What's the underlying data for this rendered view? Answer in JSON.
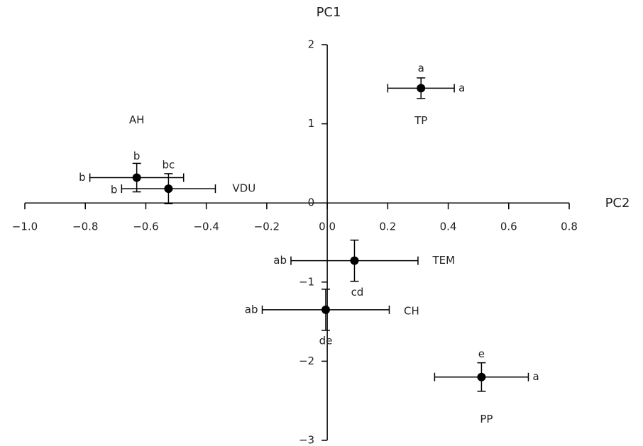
{
  "chart_data": {
    "type": "scatter",
    "ylabel": "PC1",
    "xlabel": "PC2",
    "xlim": [
      -1.0,
      0.8
    ],
    "xticks": [
      {
        "value": -1.0,
        "label": "−1.0"
      },
      {
        "value": -0.8,
        "label": "−0.8"
      },
      {
        "value": -0.6,
        "label": "−0.6"
      },
      {
        "value": -0.4,
        "label": "−0.4"
      },
      {
        "value": -0.2,
        "label": "−0.2"
      },
      {
        "value": 0,
        "label": "0.0"
      },
      {
        "value": 0.2,
        "label": "0.2"
      },
      {
        "value": 0.4,
        "label": "0.4"
      },
      {
        "value": 0.6,
        "label": "0.6"
      },
      {
        "value": 0.8,
        "label": "0.8"
      }
    ],
    "ylim": [
      -3,
      2
    ],
    "yticks": [
      2,
      1,
      0,
      {
        "value": -1,
        "label": "−1"
      },
      {
        "value": -2,
        "label": "−2"
      },
      {
        "value": -3,
        "label": "−3"
      }
    ],
    "color": "#000000",
    "points": [
      {
        "name": "TP",
        "x": 0.31,
        "y": 1.45,
        "xerr": 0.11,
        "yerr": 0.13,
        "y_letter": "a",
        "x_letter": "a"
      },
      {
        "name": "AH",
        "x": -0.63,
        "y": 0.32,
        "xerr": 0.155,
        "yerr": 0.18,
        "y_letter": "b",
        "x_letter": "b"
      },
      {
        "name": "VDU",
        "x": -0.525,
        "y": 0.18,
        "xerr": 0.155,
        "yerr": 0.19,
        "y_letter": "bc",
        "x_letter": "b"
      },
      {
        "name": "TEM",
        "x": 0.09,
        "y": -0.73,
        "xerr": 0.21,
        "yerr": 0.26,
        "y_letter": "cd",
        "x_letter": "ab"
      },
      {
        "name": "CH",
        "x": -0.005,
        "y": -1.35,
        "xerr": 0.21,
        "yerr": 0.26,
        "y_letter": "de",
        "x_letter": "ab"
      },
      {
        "name": "PP",
        "x": 0.51,
        "y": -2.2,
        "xerr": 0.155,
        "yerr": 0.18,
        "y_letter": "e",
        "x_letter": "a"
      }
    ]
  }
}
